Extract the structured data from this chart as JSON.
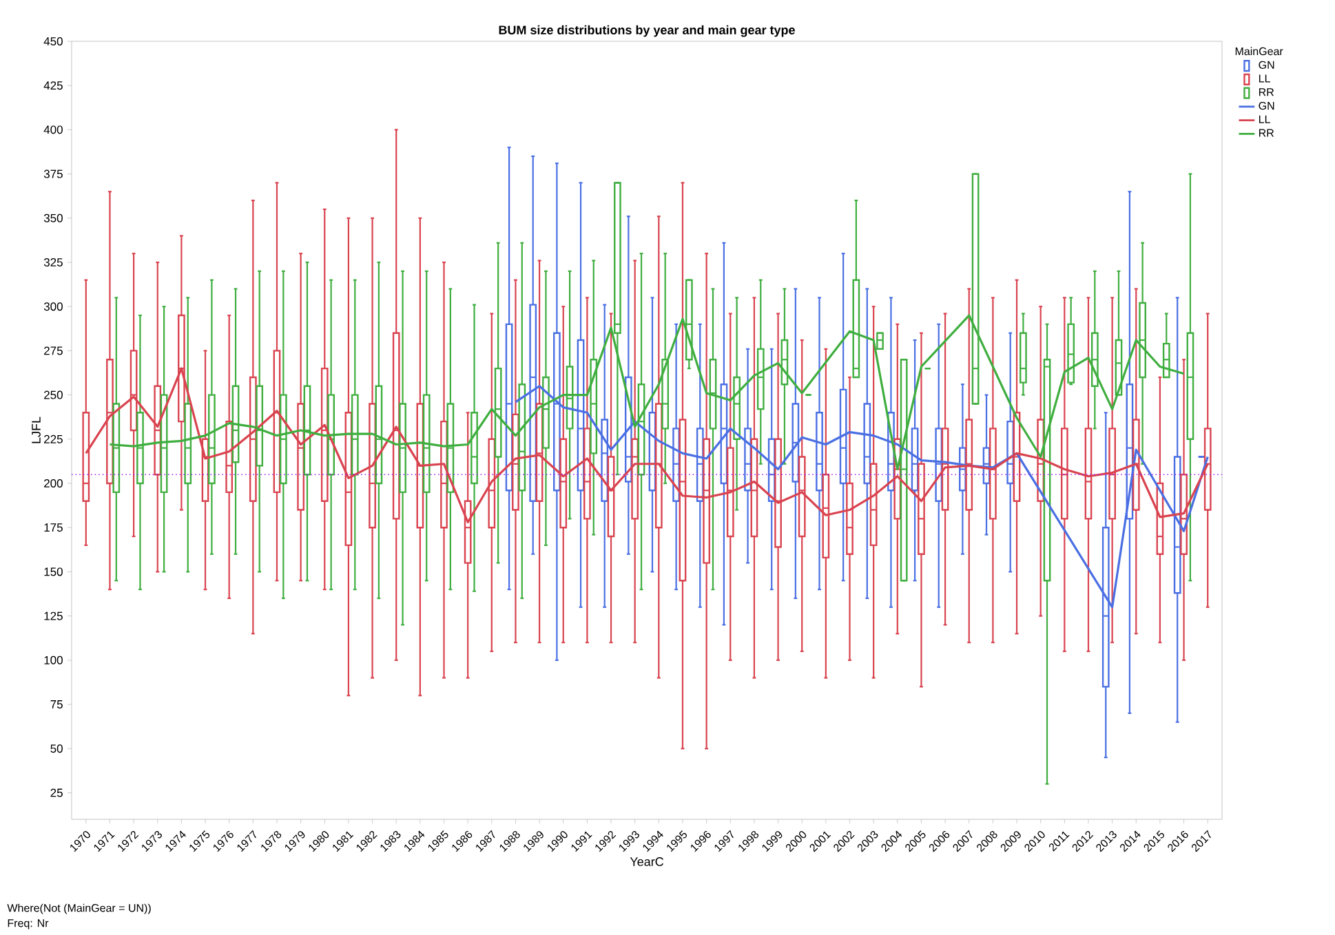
{
  "chart_data": {
    "type": "box",
    "title": "BUM size distributions by year and main gear type",
    "xlabel": "YearC",
    "ylabel": "LJFL",
    "legend_title": "MainGear",
    "legend": "right",
    "categories": [
      "1970",
      "1971",
      "1972",
      "1973",
      "1974",
      "1975",
      "1976",
      "1977",
      "1978",
      "1979",
      "1980",
      "1981",
      "1982",
      "1983",
      "1984",
      "1985",
      "1986",
      "1987",
      "1988",
      "1989",
      "1990",
      "1991",
      "1992",
      "1993",
      "1994",
      "1995",
      "1996",
      "1997",
      "1998",
      "1999",
      "2000",
      "2001",
      "2002",
      "2003",
      "2004",
      "2005",
      "2006",
      "2007",
      "2008",
      "2009",
      "2010",
      "2011",
      "2012",
      "2013",
      "2014",
      "2015",
      "2016",
      "2017"
    ],
    "ylim": [
      10,
      450
    ],
    "yticks": [
      25,
      50,
      75,
      100,
      125,
      150,
      175,
      200,
      225,
      250,
      275,
      300,
      325,
      350,
      375,
      400,
      425,
      450
    ],
    "ref_lines": [
      {
        "axis": "y",
        "value": 205,
        "color": "#a020f0",
        "line_style": "dotted"
      }
    ],
    "annotations": [
      "Where(Not (MainGear = UN))",
      "Freq: Nr"
    ],
    "series": [
      {
        "name": "GN",
        "type": "box",
        "color": "#4a6fe3",
        "boxes": [
          null,
          null,
          null,
          null,
          null,
          null,
          null,
          null,
          null,
          null,
          null,
          null,
          null,
          null,
          null,
          null,
          null,
          null,
          {
            "low": 140,
            "q1": 196,
            "median": 245,
            "q3": 290,
            "high": 390
          },
          {
            "low": 160,
            "q1": 190,
            "median": 260,
            "q3": 301,
            "high": 385
          },
          {
            "low": 100,
            "q1": 196,
            "median": 245,
            "q3": 285,
            "high": 381
          },
          {
            "low": 130,
            "q1": 196,
            "median": 231,
            "q3": 281,
            "high": 370
          },
          {
            "low": 130,
            "q1": 190,
            "median": 217,
            "q3": 236,
            "high": 301
          },
          {
            "low": 160,
            "q1": 201,
            "median": 215,
            "q3": 260,
            "high": 351
          },
          {
            "low": 150,
            "q1": 196,
            "median": 211,
            "q3": 240,
            "high": 305
          },
          {
            "low": 140,
            "q1": 190,
            "median": 211,
            "q3": 231,
            "high": 290
          },
          {
            "low": 130,
            "q1": 190,
            "median": 211,
            "q3": 231,
            "high": 290
          },
          {
            "low": 120,
            "q1": 200,
            "median": 231,
            "q3": 256,
            "high": 336
          },
          {
            "low": 155,
            "q1": 196,
            "median": 211,
            "q3": 231,
            "high": 276
          },
          {
            "low": 140,
            "q1": 190,
            "median": 205,
            "q3": 225,
            "high": 276
          },
          {
            "low": 135,
            "q1": 201,
            "median": 223,
            "q3": 245,
            "high": 310
          },
          {
            "low": 140,
            "q1": 196,
            "median": 211,
            "q3": 240,
            "high": 305
          },
          {
            "low": 145,
            "q1": 200,
            "median": 220,
            "q3": 253,
            "high": 330
          },
          {
            "low": 135,
            "q1": 200,
            "median": 215,
            "q3": 245,
            "high": 310
          },
          {
            "low": 130,
            "q1": 196,
            "median": 211,
            "q3": 240,
            "high": 305
          },
          {
            "low": 145,
            "q1": 196,
            "median": 211,
            "q3": 231,
            "high": 281
          },
          {
            "low": 130,
            "q1": 190,
            "median": 211,
            "q3": 231,
            "high": 290
          },
          {
            "low": 160,
            "q1": 196,
            "median": 208,
            "q3": 220,
            "high": 256
          },
          {
            "low": 171,
            "q1": 200,
            "median": 211,
            "q3": 220,
            "high": 250
          },
          {
            "low": 150,
            "q1": 200,
            "median": 211,
            "q3": 235,
            "high": 285
          },
          null,
          null,
          null,
          {
            "low": 45,
            "q1": 85,
            "median": 125,
            "q3": 175,
            "high": 240
          },
          {
            "low": 70,
            "q1": 180,
            "median": 220,
            "q3": 256,
            "high": 365
          },
          null,
          {
            "low": 65,
            "q1": 138,
            "median": 164,
            "q3": 215,
            "high": 305
          },
          {
            "low": 215,
            "q1": 215,
            "median": 215,
            "q3": 215,
            "high": 215
          }
        ]
      },
      {
        "name": "LL",
        "type": "box",
        "color": "#d9434f",
        "boxes": [
          {
            "low": 165,
            "q1": 190,
            "median": 200,
            "q3": 240,
            "high": 315
          },
          {
            "low": 140,
            "q1": 200,
            "median": 240,
            "q3": 270,
            "high": 365
          },
          {
            "low": 170,
            "q1": 230,
            "median": 250,
            "q3": 275,
            "high": 330
          },
          {
            "low": 150,
            "q1": 205,
            "median": 230,
            "q3": 255,
            "high": 325
          },
          {
            "low": 185,
            "q1": 235,
            "median": 265,
            "q3": 295,
            "high": 340
          },
          {
            "low": 140,
            "q1": 190,
            "median": 215,
            "q3": 225,
            "high": 275
          },
          {
            "low": 135,
            "q1": 195,
            "median": 210,
            "q3": 235,
            "high": 295
          },
          {
            "low": 115,
            "q1": 190,
            "median": 225,
            "q3": 260,
            "high": 360
          },
          {
            "low": 145,
            "q1": 195,
            "median": 240,
            "q3": 275,
            "high": 370
          },
          {
            "low": 145,
            "q1": 185,
            "median": 220,
            "q3": 245,
            "high": 330
          },
          {
            "low": 140,
            "q1": 190,
            "median": 230,
            "q3": 265,
            "high": 355
          },
          {
            "low": 80,
            "q1": 165,
            "median": 195,
            "q3": 240,
            "high": 350
          },
          {
            "low": 90,
            "q1": 175,
            "median": 200,
            "q3": 245,
            "high": 350
          },
          {
            "low": 100,
            "q1": 180,
            "median": 230,
            "q3": 285,
            "high": 400
          },
          {
            "low": 80,
            "q1": 175,
            "median": 210,
            "q3": 245,
            "high": 350
          },
          {
            "low": 90,
            "q1": 175,
            "median": 200,
            "q3": 235,
            "high": 325
          },
          {
            "low": 90,
            "q1": 155,
            "median": 175,
            "q3": 190,
            "high": 240
          },
          {
            "low": 105,
            "q1": 175,
            "median": 196,
            "q3": 225,
            "high": 296
          },
          {
            "low": 110,
            "q1": 185,
            "median": 211,
            "q3": 239,
            "high": 315
          },
          {
            "low": 110,
            "q1": 190,
            "median": 217,
            "q3": 245,
            "high": 326
          },
          {
            "low": 110,
            "q1": 175,
            "median": 201,
            "q3": 225,
            "high": 300
          },
          {
            "low": 110,
            "q1": 180,
            "median": 201,
            "q3": 231,
            "high": 305
          },
          {
            "low": 110,
            "q1": 170,
            "median": 196,
            "q3": 215,
            "high": 296
          },
          {
            "low": 110,
            "q1": 180,
            "median": 215,
            "q3": 225,
            "high": 326
          },
          {
            "low": 90,
            "q1": 175,
            "median": 211,
            "q3": 245,
            "high": 351
          },
          {
            "low": 50,
            "q1": 145,
            "median": 201,
            "q3": 236,
            "high": 370
          },
          {
            "low": 50,
            "q1": 155,
            "median": 196,
            "q3": 225,
            "high": 330
          },
          {
            "low": 100,
            "q1": 170,
            "median": 196,
            "q3": 220,
            "high": 296
          },
          {
            "low": 90,
            "q1": 170,
            "median": 196,
            "q3": 225,
            "high": 305
          },
          {
            "low": 100,
            "q1": 164,
            "median": 190,
            "q3": 225,
            "high": 296
          },
          {
            "low": 105,
            "q1": 170,
            "median": 196,
            "q3": 215,
            "high": 281
          },
          {
            "low": 90,
            "q1": 158,
            "median": 186,
            "q3": 205,
            "high": 276
          },
          {
            "low": 100,
            "q1": 160,
            "median": 175,
            "q3": 200,
            "high": 260
          },
          {
            "low": 90,
            "q1": 165,
            "median": 185,
            "q3": 211,
            "high": 300
          },
          {
            "low": 115,
            "q1": 180,
            "median": 208,
            "q3": 225,
            "high": 290
          },
          {
            "low": 85,
            "q1": 160,
            "median": 180,
            "q3": 211,
            "high": 285
          },
          {
            "low": 120,
            "q1": 185,
            "median": 211,
            "q3": 231,
            "high": 296
          },
          {
            "low": 110,
            "q1": 185,
            "median": 211,
            "q3": 236,
            "high": 310
          },
          {
            "low": 110,
            "q1": 180,
            "median": 208,
            "q3": 231,
            "high": 305
          },
          {
            "low": 115,
            "q1": 190,
            "median": 215,
            "q3": 240,
            "high": 315
          },
          {
            "low": 125,
            "q1": 190,
            "median": 211,
            "q3": 236,
            "high": 300
          },
          {
            "low": 105,
            "q1": 180,
            "median": 205,
            "q3": 231,
            "high": 305
          },
          {
            "low": 105,
            "q1": 180,
            "median": 201,
            "q3": 231,
            "high": 305
          },
          {
            "low": 110,
            "q1": 180,
            "median": 205,
            "q3": 231,
            "high": 305
          },
          {
            "low": 115,
            "q1": 185,
            "median": 211,
            "q3": 236,
            "high": 310
          },
          {
            "low": 110,
            "q1": 160,
            "median": 170,
            "q3": 200,
            "high": 260
          },
          {
            "low": 100,
            "q1": 160,
            "median": 180,
            "q3": 205,
            "high": 270
          },
          {
            "low": 130,
            "q1": 185,
            "median": 211,
            "q3": 231,
            "high": 296
          }
        ]
      },
      {
        "name": "RR",
        "type": "box",
        "color": "#3fae3f",
        "boxes": [
          null,
          {
            "low": 145,
            "q1": 195,
            "median": 220,
            "q3": 245,
            "high": 305
          },
          {
            "low": 140,
            "q1": 200,
            "median": 220,
            "q3": 240,
            "high": 295
          },
          {
            "low": 150,
            "q1": 195,
            "median": 220,
            "q3": 250,
            "high": 300
          },
          {
            "low": 150,
            "q1": 200,
            "median": 220,
            "q3": 245,
            "high": 305
          },
          {
            "low": 160,
            "q1": 200,
            "median": 220,
            "q3": 250,
            "high": 315
          },
          {
            "low": 160,
            "q1": 212,
            "median": 230,
            "q3": 255,
            "high": 310
          },
          {
            "low": 150,
            "q1": 210,
            "median": 230,
            "q3": 255,
            "high": 320
          },
          {
            "low": 135,
            "q1": 200,
            "median": 225,
            "q3": 250,
            "high": 320
          },
          {
            "low": 145,
            "q1": 205,
            "median": 230,
            "q3": 255,
            "high": 325
          },
          {
            "low": 140,
            "q1": 205,
            "median": 225,
            "q3": 250,
            "high": 315
          },
          {
            "low": 140,
            "q1": 205,
            "median": 225,
            "q3": 250,
            "high": 315
          },
          {
            "low": 135,
            "q1": 200,
            "median": 225,
            "q3": 255,
            "high": 325
          },
          {
            "low": 120,
            "q1": 195,
            "median": 220,
            "q3": 245,
            "high": 320
          },
          {
            "low": 145,
            "q1": 195,
            "median": 220,
            "q3": 250,
            "high": 320
          },
          {
            "low": 140,
            "q1": 195,
            "median": 220,
            "q3": 245,
            "high": 310
          },
          {
            "low": 139,
            "q1": 200,
            "median": 215,
            "q3": 240,
            "high": 301
          },
          {
            "low": 155,
            "q1": 215,
            "median": 242,
            "q3": 265,
            "high": 336
          },
          {
            "low": 135,
            "q1": 196,
            "median": 218,
            "q3": 256,
            "high": 336
          },
          {
            "low": 165,
            "q1": 220,
            "median": 242,
            "q3": 260,
            "high": 320
          },
          {
            "low": 180,
            "q1": 231,
            "median": 248,
            "q3": 266,
            "high": 320
          },
          {
            "low": 171,
            "q1": 217,
            "median": 245,
            "q3": 270,
            "high": 326
          },
          {
            "low": 205,
            "q1": 285,
            "median": 290,
            "q3": 370,
            "high": 370
          },
          {
            "low": 140,
            "q1": 205,
            "median": 235,
            "q3": 256,
            "high": 330
          },
          {
            "low": 200,
            "q1": 231,
            "median": 245,
            "q3": 270,
            "high": 330
          },
          {
            "low": 265,
            "q1": 270,
            "median": 290,
            "q3": 315,
            "high": 315
          },
          {
            "low": 140,
            "q1": 231,
            "median": 251,
            "q3": 270,
            "high": 310
          },
          {
            "low": 185,
            "q1": 225,
            "median": 245,
            "q3": 260,
            "high": 305
          },
          {
            "low": 211,
            "q1": 242,
            "median": 260,
            "q3": 276,
            "high": 315
          },
          {
            "low": 211,
            "q1": 256,
            "median": 270,
            "q3": 281,
            "high": 310
          },
          {
            "low": 250,
            "q1": 250,
            "median": 250,
            "q3": 250,
            "high": 250
          },
          null,
          {
            "low": 260,
            "q1": 260,
            "median": 265,
            "q3": 315,
            "high": 360
          },
          {
            "low": 276,
            "q1": 276,
            "median": 281,
            "q3": 285,
            "high": 285
          },
          {
            "low": 145,
            "q1": 145,
            "median": 208,
            "q3": 270,
            "high": 270
          },
          {
            "low": 265,
            "q1": 265,
            "median": 265,
            "q3": 265,
            "high": 265
          },
          null,
          {
            "low": 245,
            "q1": 245,
            "median": 265,
            "q3": 375,
            "high": 375
          },
          null,
          {
            "low": 250,
            "q1": 257,
            "median": 265,
            "q3": 285,
            "high": 296
          },
          {
            "low": 30,
            "q1": 145,
            "median": 266,
            "q3": 270,
            "high": 290
          },
          {
            "low": 256,
            "q1": 257,
            "median": 273,
            "q3": 290,
            "high": 305
          },
          {
            "low": 231,
            "q1": 255,
            "median": 270,
            "q3": 285,
            "high": 320
          },
          {
            "low": 250,
            "q1": 250,
            "median": 268,
            "q3": 281,
            "high": 320
          },
          {
            "low": 211,
            "q1": 260,
            "median": 281,
            "q3": 302,
            "high": 336
          },
          {
            "low": 260,
            "q1": 260,
            "median": 270,
            "q3": 279,
            "high": 296
          },
          {
            "low": 145,
            "q1": 225,
            "median": 260,
            "q3": 285,
            "high": 375
          },
          null
        ]
      },
      {
        "name": "GN",
        "type": "line",
        "color": "#4a6fe3",
        "values": [
          null,
          null,
          null,
          null,
          null,
          null,
          null,
          null,
          null,
          null,
          null,
          null,
          null,
          null,
          null,
          null,
          null,
          null,
          246,
          255,
          243,
          240,
          219,
          235,
          224,
          217,
          214,
          231,
          220,
          208,
          226,
          222,
          229,
          227,
          222,
          213,
          212,
          210,
          209,
          217,
          null,
          null,
          null,
          130,
          219,
          null,
          173,
          215
        ]
      },
      {
        "name": "LL",
        "type": "line",
        "color": "#d9434f",
        "values": [
          217,
          238,
          249,
          232,
          265,
          214,
          218,
          229,
          241,
          222,
          233,
          203,
          210,
          232,
          210,
          211,
          178,
          201,
          214,
          216,
          204,
          214,
          196,
          211,
          211,
          193,
          192,
          195,
          201,
          189,
          195,
          182,
          185,
          193,
          204,
          190,
          209,
          210,
          208,
          217,
          214,
          208,
          204,
          206,
          211,
          181,
          183,
          211
        ]
      },
      {
        "name": "RR",
        "type": "line",
        "color": "#3fae3f",
        "values": [
          null,
          222,
          221,
          223,
          224,
          227,
          234,
          232,
          227,
          230,
          227,
          228,
          228,
          222,
          223,
          221,
          222,
          242,
          227,
          243,
          250,
          250,
          288,
          232,
          256,
          293,
          251,
          247,
          261,
          268,
          251,
          null,
          286,
          281,
          208,
          266,
          null,
          295,
          null,
          237,
          215,
          263,
          271,
          242,
          281,
          266,
          262,
          null
        ]
      }
    ]
  }
}
